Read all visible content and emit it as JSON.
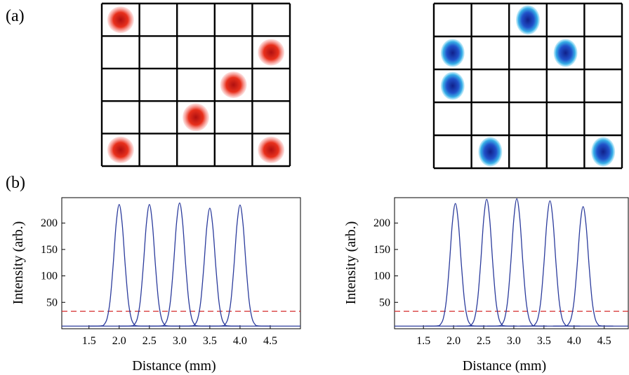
{
  "panel_labels": [
    "(a)",
    "(b)"
  ],
  "chart_data": [
    {
      "type": "line",
      "xlabel": "Distance (mm)",
      "ylabel": "Intensity (arb.)",
      "xlim": [
        1.05,
        5.0
      ],
      "ylim": [
        0,
        248
      ],
      "xticks": [
        1.5,
        {
          "value": 2,
          "label": "2.0"
        },
        2.5,
        {
          "value": 3,
          "label": "3.0"
        },
        3.5,
        {
          "value": 4,
          "label": "4.0"
        },
        4.5
      ],
      "yticks": [
        50,
        100,
        150,
        200
      ],
      "hlines": [
        {
          "value": 33,
          "color": "#d42a2a"
        }
      ],
      "series": [
        {
          "color": "#2b3b9c",
          "x": [
            1.5,
            1.7,
            1.75,
            1.8,
            1.85,
            1.9,
            1.95,
            2.0,
            2.05,
            2.1,
            2.15,
            2.2,
            2.25,
            2.3,
            2.5
          ],
          "values": [
            5,
            5.5,
            8,
            19.5,
            53.5,
            120,
            198.4,
            235,
            198.4,
            120,
            53.5,
            19.5,
            8,
            5.5,
            5
          ]
        },
        {
          "color": "#2b3b9c",
          "x": [
            2.0,
            2.2,
            2.25,
            2.3,
            2.35,
            2.4,
            2.45,
            2.5,
            2.55,
            2.6,
            2.65,
            2.7,
            2.75,
            2.8,
            3.0
          ],
          "values": [
            5,
            5.5,
            8,
            19.5,
            53.5,
            120,
            198.4,
            235,
            198.4,
            120,
            53.5,
            19.5,
            8,
            5.5,
            5
          ]
        },
        {
          "color": "#2b3b9c",
          "x": [
            2.5,
            2.7,
            2.75,
            2.8,
            2.85,
            2.9,
            2.95,
            3.0,
            3.05,
            3.1,
            3.15,
            3.2,
            3.25,
            3.3,
            3.5
          ],
          "values": [
            5,
            5.5,
            8,
            19.7,
            54.2,
            121.5,
            201,
            238,
            201,
            121.5,
            54.2,
            19.7,
            8,
            5.5,
            5
          ]
        },
        {
          "color": "#2b3b9c",
          "x": [
            3.0,
            3.2,
            3.25,
            3.3,
            3.35,
            3.4,
            3.45,
            3.5,
            3.55,
            3.6,
            3.65,
            3.7,
            3.75,
            3.8,
            4.0
          ],
          "values": [
            5,
            5.4,
            7.9,
            19,
            52,
            116.5,
            192.5,
            228,
            192.5,
            116.5,
            52,
            19,
            7.9,
            5.4,
            5
          ]
        },
        {
          "color": "#2b3b9c",
          "x": [
            3.5,
            3.7,
            3.75,
            3.8,
            3.85,
            3.9,
            3.95,
            4.0,
            4.05,
            4.1,
            4.15,
            4.2,
            4.25,
            4.3,
            4.5
          ],
          "values": [
            5,
            5.5,
            8,
            19.4,
            53.3,
            119.5,
            197.6,
            234,
            197.6,
            119.5,
            53.3,
            19.4,
            8,
            5.5,
            5
          ]
        }
      ]
    },
    {
      "type": "line",
      "xlabel": "Distance (mm)",
      "ylabel": "Intensity (arb.)",
      "xlim": [
        1.02,
        4.9
      ],
      "ylim": [
        0,
        248
      ],
      "xticks": [
        1.5,
        {
          "value": 2,
          "label": "2.0"
        },
        2.5,
        {
          "value": 3,
          "label": "3.0"
        },
        3.5,
        {
          "value": 4,
          "label": "4.0"
        },
        4.5
      ],
      "yticks": [
        50,
        100,
        150,
        200
      ],
      "hlines": [
        {
          "value": 33,
          "color": "#d42a2a"
        }
      ],
      "series": [
        {
          "color": "#2b3b9c",
          "x": [
            1.53,
            1.73,
            1.78,
            1.83,
            1.88,
            1.93,
            1.98,
            2.03,
            2.08,
            2.13,
            2.18,
            2.23,
            2.28,
            2.33,
            2.53
          ],
          "values": [
            5,
            5.5,
            8,
            19.6,
            54,
            121,
            200.1,
            237,
            200.1,
            121,
            54,
            19.6,
            8,
            5.5,
            5
          ]
        },
        {
          "color": "#2b3b9c",
          "x": [
            2.05,
            2.25,
            2.3,
            2.35,
            2.4,
            2.45,
            2.5,
            2.55,
            2.6,
            2.65,
            2.7,
            2.75,
            2.8,
            2.85,
            3.05
          ],
          "values": [
            5,
            5.5,
            8.1,
            20.1,
            55.6,
            125,
            206.8,
            245,
            206.8,
            125,
            55.6,
            20.1,
            8.1,
            5.5,
            5
          ]
        },
        {
          "color": "#2b3b9c",
          "x": [
            2.55,
            2.75,
            2.8,
            2.85,
            2.9,
            2.95,
            3.0,
            3.05,
            3.1,
            3.15,
            3.2,
            3.25,
            3.3,
            3.35,
            3.55
          ],
          "values": [
            5,
            5.5,
            8.1,
            20.2,
            55.9,
            125.5,
            207.7,
            246,
            207.7,
            125.5,
            55.9,
            20.2,
            8.1,
            5.5,
            5
          ]
        },
        {
          "color": "#2b3b9c",
          "x": [
            3.1,
            3.3,
            3.35,
            3.4,
            3.45,
            3.5,
            3.55,
            3.6,
            3.65,
            3.7,
            3.75,
            3.8,
            3.85,
            3.9,
            4.1
          ],
          "values": [
            5,
            5.5,
            8.1,
            19.9,
            55,
            123.5,
            204.3,
            242,
            204.3,
            123.5,
            55,
            19.9,
            8.1,
            5.5,
            5
          ]
        },
        {
          "color": "#2b3b9c",
          "x": [
            3.65,
            3.85,
            3.9,
            3.95,
            4.0,
            4.05,
            4.1,
            4.15,
            4.2,
            4.25,
            4.3,
            4.35,
            4.4,
            4.45,
            4.65
          ],
          "values": [
            5,
            5.5,
            7.9,
            19.2,
            52.7,
            118,
            195.1,
            231,
            195.1,
            118,
            52.7,
            19.2,
            7.9,
            5.5,
            5
          ]
        }
      ]
    }
  ]
}
